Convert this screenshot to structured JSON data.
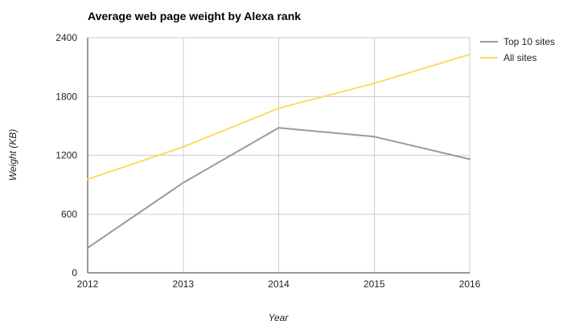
{
  "chart_data": {
    "type": "line",
    "title": "Average web page weight by Alexa rank",
    "xlabel": "Year",
    "ylabel": "Weight (KB)",
    "x": [
      "2012",
      "2013",
      "2014",
      "2015",
      "2016"
    ],
    "ylim": [
      0,
      2400
    ],
    "yticks": [
      "0",
      "600",
      "1200",
      "1800",
      "2400"
    ],
    "grid": true,
    "legend_position": "right",
    "series": [
      {
        "name": "Top 10 sites",
        "color": "#999999",
        "values": [
          255,
          920,
          1480,
          1390,
          1160
        ]
      },
      {
        "name": "All sites",
        "color": "#ffd966",
        "values": [
          955,
          1285,
          1680,
          1935,
          2230
        ]
      }
    ]
  }
}
